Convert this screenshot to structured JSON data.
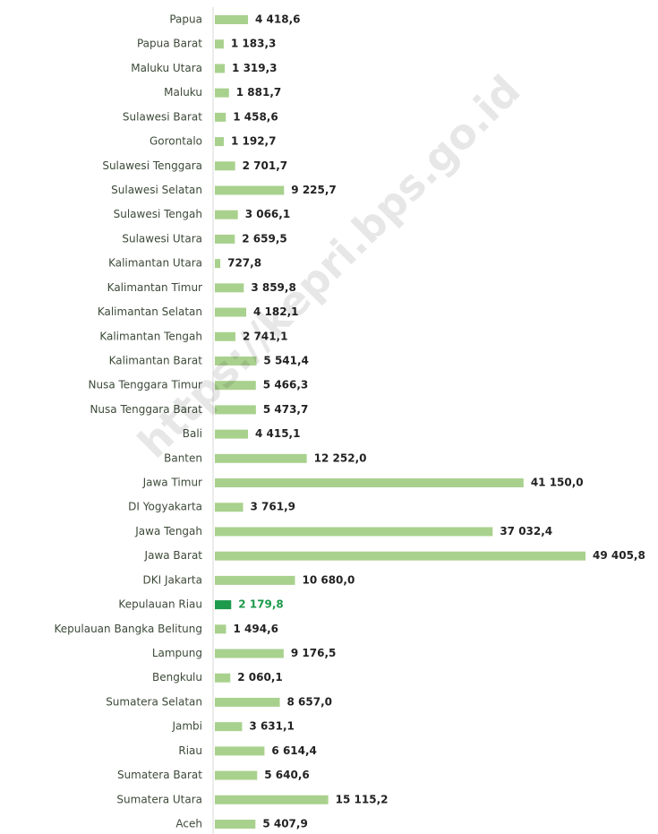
{
  "chart_data": {
    "type": "bar",
    "orientation": "horizontal",
    "watermark": "https://kepri.bps.go.id",
    "categories": [
      "Papua",
      "Papua Barat",
      "Maluku Utara",
      "Maluku",
      "Sulawesi Barat",
      "Gorontalo",
      "Sulawesi Tenggara",
      "Sulawesi Selatan",
      "Sulawesi Tengah",
      "Sulawesi Utara",
      "Kalimantan Utara",
      "Kalimantan Timur",
      "Kalimantan Selatan",
      "Kalimantan Tengah",
      "Kalimantan Barat",
      "Nusa Tenggara Timur",
      "Nusa Tenggara Barat",
      "Bali",
      "Banten",
      "Jawa Timur",
      "DI Yogyakarta",
      "Jawa Tengah",
      "Jawa Barat",
      "DKI Jakarta",
      "Kepulauan Riau",
      "Kepulauan Bangka Belitung",
      "Lampung",
      "Bengkulu",
      "Sumatera Selatan",
      "Jambi",
      "Riau",
      "Sumatera Barat",
      "Sumatera Utara",
      "Aceh"
    ],
    "values": [
      4418.6,
      1183.3,
      1319.3,
      1881.7,
      1458.6,
      1192.7,
      2701.7,
      9225.7,
      3066.1,
      2659.5,
      727.8,
      3859.8,
      4182.1,
      2741.1,
      5541.4,
      5466.3,
      5473.7,
      4415.1,
      12252.0,
      41150.0,
      3761.9,
      37032.4,
      49405.8,
      10680.0,
      2179.8,
      1494.6,
      9176.5,
      2060.1,
      8657.0,
      3631.1,
      6614.4,
      5640.6,
      15115.2,
      5407.9
    ],
    "value_labels": [
      "4 418,6",
      "1 183,3",
      "1 319,3",
      "1 881,7",
      "1 458,6",
      "1 192,7",
      "2 701,7",
      "9 225,7",
      "3 066,1",
      "2 659,5",
      "727,8",
      "3 859,8",
      "4 182,1",
      "2 741,1",
      "5 541,4",
      "5 466,3",
      "5 473,7",
      "4 415,1",
      "12 252,0",
      "41 150,0",
      "3 761,9",
      "37 032,4",
      "49 405,8",
      "10 680,0",
      "2 179,8",
      "1 494,6",
      "9 176,5",
      "2 060,1",
      "8 657,0",
      "3 631,1",
      "6 614,4",
      "5 640,6",
      "15 115,2",
      "5 407,9"
    ],
    "colors": [
      "#a9d18e",
      "#a9d18e",
      "#a9d18e",
      "#a9d18e",
      "#a9d18e",
      "#a9d18e",
      "#a9d18e",
      "#a9d18e",
      "#a9d18e",
      "#a9d18e",
      "#a9d18e",
      "#a9d18e",
      "#a9d18e",
      "#a9d18e",
      "#a9d18e",
      "#a9d18e",
      "#a9d18e",
      "#a9d18e",
      "#a9d18e",
      "#a9d18e",
      "#a9d18e",
      "#a9d18e",
      "#a9d18e",
      "#a9d18e",
      "#1e9a4c",
      "#a9d18e",
      "#a9d18e",
      "#a9d18e",
      "#a9d18e",
      "#a9d18e",
      "#a9d18e",
      "#a9d18e",
      "#a9d18e",
      "#a9d18e"
    ],
    "label_colors": [
      "#222",
      "#222",
      "#222",
      "#222",
      "#222",
      "#222",
      "#222",
      "#222",
      "#222",
      "#222",
      "#222",
      "#222",
      "#222",
      "#222",
      "#222",
      "#222",
      "#222",
      "#222",
      "#222",
      "#222",
      "#222",
      "#222",
      "#222",
      "#222",
      "#1e9a4c",
      "#222",
      "#222",
      "#222",
      "#222",
      "#222",
      "#222",
      "#222",
      "#222",
      "#222"
    ]
  }
}
